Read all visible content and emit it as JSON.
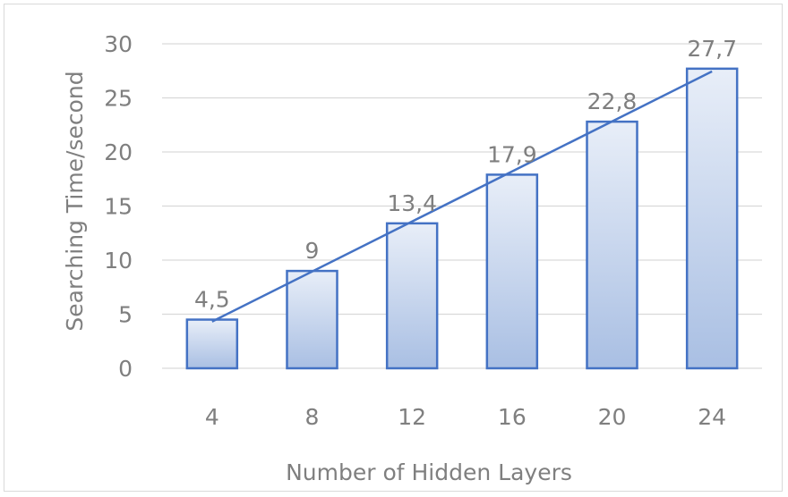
{
  "chart_data": {
    "type": "bar",
    "title": "",
    "xlabel": "Number of Hidden Layers",
    "ylabel": "Searching Time/second",
    "categories": [
      "4",
      "8",
      "12",
      "16",
      "20",
      "24"
    ],
    "series": [
      {
        "values": [
          4.5,
          9,
          13.4,
          17.9,
          22.8,
          27.7
        ],
        "value_labels": [
          "4,5",
          "9",
          "13,4",
          "17,9",
          "22,8",
          "27,7"
        ]
      }
    ],
    "trendline": {
      "type": "linear",
      "color": "#4472c4"
    },
    "ylim": [
      0,
      30
    ],
    "yticks": [
      "0",
      "5",
      "10",
      "15",
      "20",
      "25",
      "30"
    ],
    "grid": true,
    "legend": "none",
    "colors": {
      "bar_top": "#e8eef8",
      "bar_bottom": "#a9bfe3",
      "bar_border": "#4472c4",
      "grid": "#d9d9d9",
      "text": "#7f7f7f"
    }
  }
}
